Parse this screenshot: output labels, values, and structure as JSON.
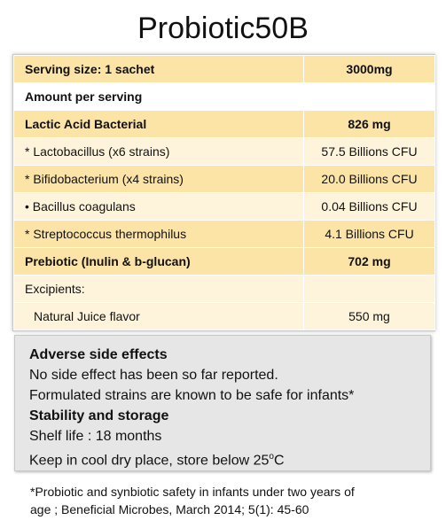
{
  "title": "Probiotic50B",
  "table": {
    "rows": [
      {
        "label": "Serving size: 1 sachet",
        "value": "3000mg"
      },
      {
        "label": "Amount per serving",
        "value": ""
      },
      {
        "label": "Lactic Acid Bacterial",
        "value": "826 mg"
      },
      {
        "label": "* Lactobacillus (x6 strains)",
        "value": "57.5 Billions CFU"
      },
      {
        "label": "* Bifidobacterium (x4 strains)",
        "value": "20.0 Billions CFU"
      },
      {
        "label": "•  Bacillus coagulans",
        "value": "0.04 Billions CFU"
      },
      {
        "label": "* Streptococcus thermophilus",
        "value": "4.1 Billions CFU"
      },
      {
        "label": "Prebiotic (Inulin & b-glucan)",
        "value": "702 mg"
      },
      {
        "label": "Excipients:",
        "value": ""
      },
      {
        "label": "Natural Juice flavor",
        "value": "550 mg"
      }
    ]
  },
  "notes": {
    "adverse_heading": "Adverse side effects",
    "adverse_line1": "No side effect has been so far reported.",
    "adverse_line2": "Formulated strains are known to be safe for infants*",
    "stability_heading": "Stability and storage",
    "shelf_life": "Shelf life : 18 months",
    "storage": "Keep in cool dry place, store below 25",
    "storage_deg": "o",
    "storage_unit": "C"
  },
  "footnote": {
    "line1": "*Probiotic and synbiotic safety in infants under two years of",
    "line2": "age ; Beneficial Microbes, March 2014; 5(1): 45-60"
  }
}
